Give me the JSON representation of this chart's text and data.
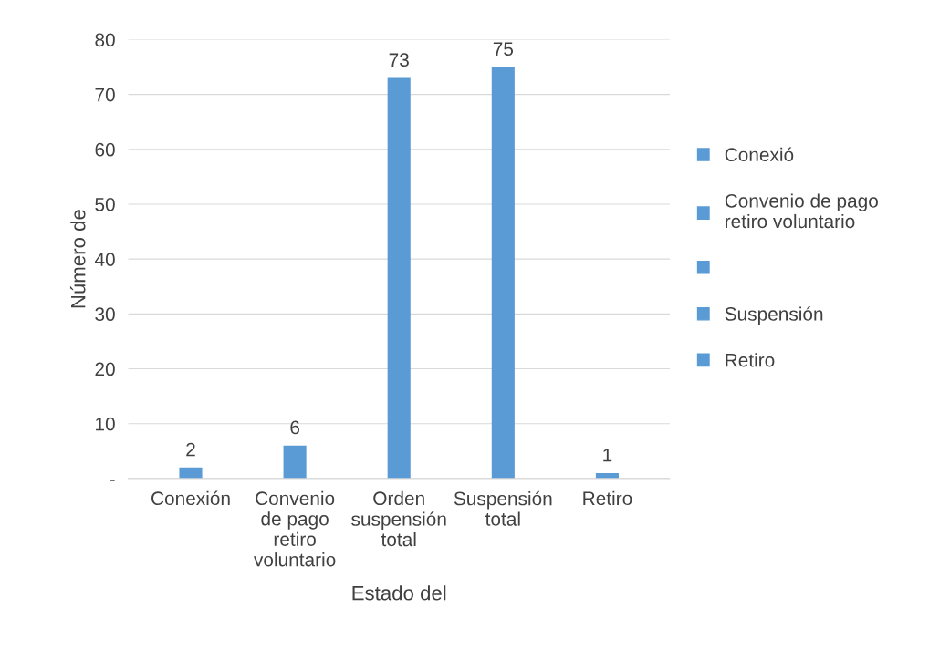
{
  "chart_data": {
    "type": "bar",
    "stacked": true,
    "xlabel": "Estado del",
    "ylabel": "Número de",
    "categories": [
      "Conexión",
      "Convenio de pago retiro voluntario",
      "Orden suspensión total",
      "Suspensión total",
      "Retiro"
    ],
    "series": [
      {
        "name": "Conexió",
        "color": "#5b9bd5",
        "values": [
          2,
          null,
          null,
          null,
          null
        ]
      },
      {
        "name": "Convenio de pago retiro voluntario",
        "color": "#5b9bd5",
        "values": [
          null,
          6,
          null,
          null,
          null
        ]
      },
      {
        "color": "#5b9bd5",
        "values": [
          null,
          null,
          73,
          null,
          null
        ]
      },
      {
        "name": "Suspensión",
        "color": "#5b9bd5",
        "values": [
          null,
          null,
          null,
          75,
          null
        ]
      },
      {
        "name": "Retiro",
        "color": "#5b9bd5",
        "values": [
          null,
          null,
          null,
          null,
          1
        ]
      }
    ],
    "ylim": [
      0,
      80
    ],
    "yticks": [
      {
        "value": 0,
        "label": "-"
      },
      10,
      20,
      30,
      40,
      50,
      60,
      70,
      80
    ],
    "grid": "y",
    "legend": "right",
    "data_labels": true
  }
}
